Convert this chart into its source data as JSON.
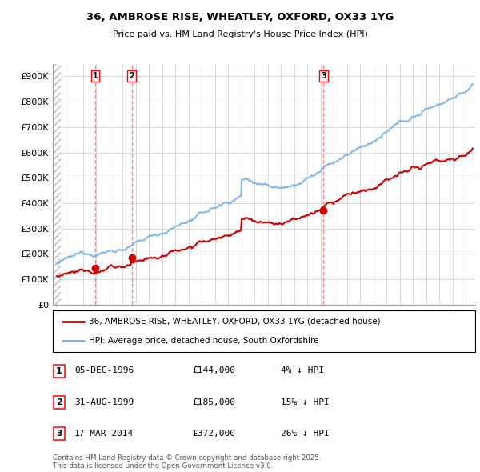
{
  "title1": "36, AMBROSE RISE, WHEATLEY, OXFORD, OX33 1YG",
  "title2": "Price paid vs. HM Land Registry's House Price Index (HPI)",
  "ylim": [
    0,
    950000
  ],
  "yticks": [
    0,
    100000,
    200000,
    300000,
    400000,
    500000,
    600000,
    700000,
    800000,
    900000
  ],
  "ytick_labels": [
    "£0",
    "£100K",
    "£200K",
    "£300K",
    "£400K",
    "£500K",
    "£600K",
    "£700K",
    "£800K",
    "£900K"
  ],
  "sale_prices": [
    144000,
    185000,
    372000
  ],
  "sale_year_nums": [
    1996.92,
    1999.67,
    2014.21
  ],
  "sale_labels": [
    "1",
    "2",
    "3"
  ],
  "legend_line1": "36, AMBROSE RISE, WHEATLEY, OXFORD, OX33 1YG (detached house)",
  "legend_line2": "HPI: Average price, detached house, South Oxfordshire",
  "table_rows": [
    [
      "1",
      "05-DEC-1996",
      "£144,000",
      "4% ↓ HPI"
    ],
    [
      "2",
      "31-AUG-1999",
      "£185,000",
      "15% ↓ HPI"
    ],
    [
      "3",
      "17-MAR-2014",
      "£372,000",
      "26% ↓ HPI"
    ]
  ],
  "footer": "Contains HM Land Registry data © Crown copyright and database right 2025.\nThis data is licensed under the Open Government Licence v3.0.",
  "hpi_color": "#7ab0e8",
  "price_color": "#cc0000",
  "vline_color": "#ff8888",
  "grid_color": "#cccccc",
  "xmin": 1993.7,
  "xmax": 2025.7,
  "hatch_end": 1994.3
}
